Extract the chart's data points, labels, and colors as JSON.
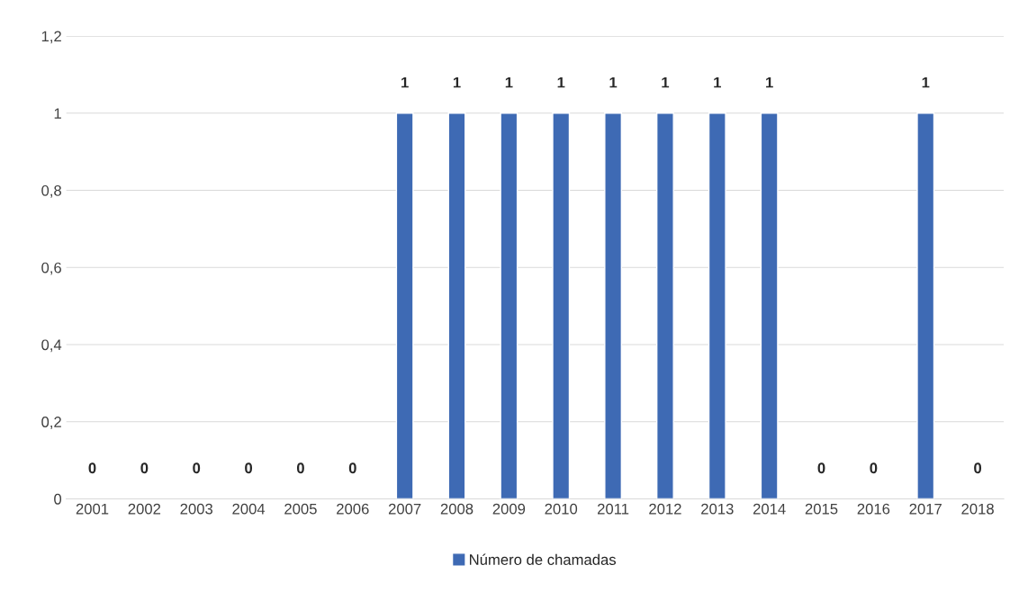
{
  "chart_data": {
    "type": "bar",
    "categories": [
      "2001",
      "2002",
      "2003",
      "2004",
      "2005",
      "2006",
      "2007",
      "2008",
      "2009",
      "2010",
      "2011",
      "2012",
      "2013",
      "2014",
      "2015",
      "2016",
      "2017",
      "2018"
    ],
    "series": [
      {
        "name": "Número de chamadas",
        "color": "#3e6ab4",
        "values": [
          0,
          0,
          0,
          0,
          0,
          0,
          1,
          1,
          1,
          1,
          1,
          1,
          1,
          1,
          0,
          0,
          1,
          0
        ]
      }
    ],
    "ylim": [
      0,
      1.2
    ],
    "yticks": [
      0,
      {
        "value": 0.2,
        "label": "0,2"
      },
      {
        "value": 0.4,
        "label": "0,4"
      },
      {
        "value": 0.6,
        "label": "0,6"
      },
      {
        "value": 0.8,
        "label": "0,8"
      },
      1,
      {
        "value": 1.2,
        "label": "1,2"
      }
    ],
    "grid": "y",
    "legend": "bottom",
    "data_labels": true
  }
}
